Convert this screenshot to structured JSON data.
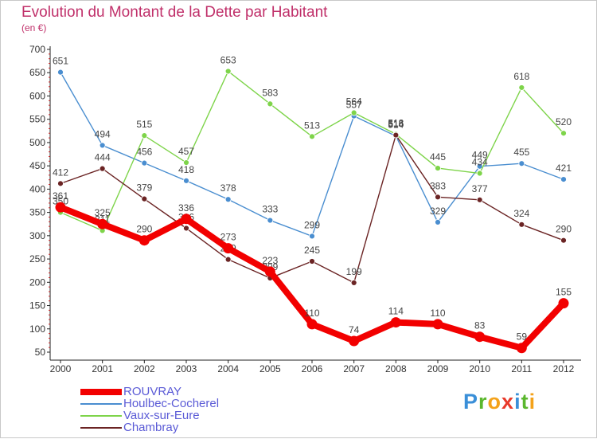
{
  "chart_data": {
    "type": "line",
    "title": "Evolution du Montant de la Dette par Habitant",
    "subtitle": "(en €)",
    "categories": [
      "2000",
      "2001",
      "2002",
      "2003",
      "2004",
      "2005",
      "2006",
      "2007",
      "2008",
      "2009",
      "2010",
      "2011",
      "2012"
    ],
    "ylim": [
      50,
      700
    ],
    "yticks": [
      50,
      100,
      150,
      200,
      250,
      300,
      350,
      400,
      450,
      500,
      550,
      600,
      650,
      700
    ],
    "grid": false,
    "legend_position": "bottom-left",
    "series": [
      {
        "name": "Houlbec-Cocherel",
        "color": "#4a8ed0",
        "values": [
          651,
          494,
          456,
          418,
          378,
          333,
          299,
          557,
          514,
          329,
          449,
          455,
          421
        ]
      },
      {
        "name": "Vaux-sur-Eure",
        "color": "#7ed44a",
        "values": [
          350,
          311,
          515,
          457,
          653,
          583,
          513,
          564,
          518,
          445,
          434,
          618,
          520
        ]
      },
      {
        "name": "Chambray",
        "color": "#6b2424",
        "values": [
          412,
          444,
          379,
          316,
          249,
          209,
          245,
          199,
          516,
          383,
          377,
          324,
          290
        ]
      },
      {
        "name": "ROUVRAY",
        "color": "#f20000",
        "values": [
          361,
          325,
          290,
          336,
          273,
          223,
          110,
          74,
          114,
          110,
          83,
          59,
          155
        ]
      }
    ]
  },
  "legend": {
    "items": [
      {
        "label": "ROUVRAY",
        "color": "#f20000"
      },
      {
        "label": "Houlbec-Cocherel",
        "color": "#4a8ed0"
      },
      {
        "label": "Vaux-sur-Eure",
        "color": "#7ed44a"
      },
      {
        "label": "Chambray",
        "color": "#6b2424"
      }
    ]
  },
  "logo": {
    "letters": [
      {
        "char": "P",
        "color": "#3a8fd8"
      },
      {
        "char": "r",
        "color": "#5bb72e"
      },
      {
        "char": "o",
        "color": "#f4a21a"
      },
      {
        "char": "x",
        "color": "#e8392a"
      },
      {
        "char": "i",
        "color": "#3a8fd8"
      },
      {
        "char": "t",
        "color": "#5bb72e"
      },
      {
        "char": "i",
        "color": "#f4a21a"
      }
    ]
  }
}
